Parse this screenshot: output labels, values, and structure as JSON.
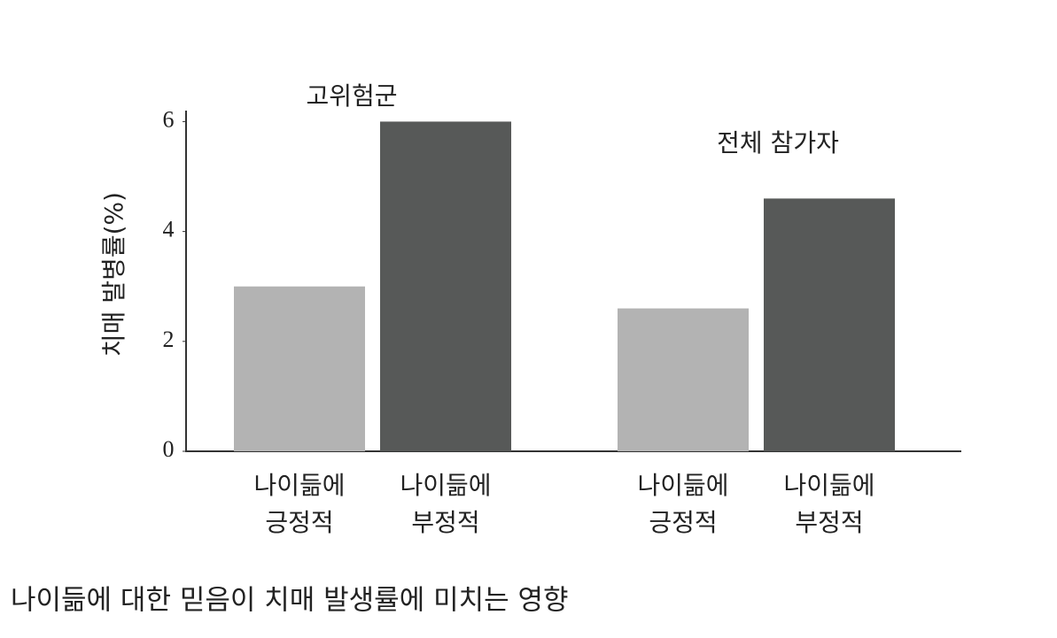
{
  "chart_data": {
    "type": "bar",
    "caption": "나이듦에 대한 믿음이 치매 발생률에 미치는 영향",
    "y_label": "치매 발병률(%)",
    "categories": [
      "고위험군",
      "전체 참가자"
    ],
    "series": [
      {
        "name": "나이듦에 긍정적",
        "color": "#b3b3b3",
        "values": [
          3.0,
          2.6
        ]
      },
      {
        "name": "나이듦에 부정적",
        "color": "#575958",
        "values": [
          6.0,
          4.6
        ]
      }
    ],
    "ylim": [
      0,
      6.2
    ],
    "yticks": [
      0,
      2,
      4,
      6
    ]
  }
}
